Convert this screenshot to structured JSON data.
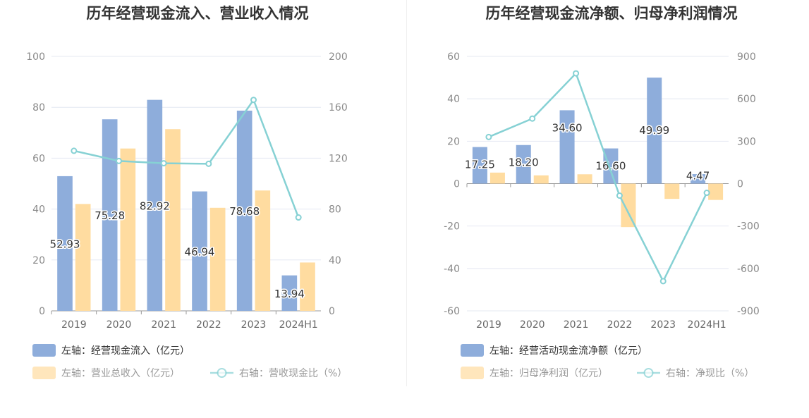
{
  "colors": {
    "bar_primary": "#8EADDB",
    "bar_secondary": "#FFDCA0",
    "line": "#86D1D4",
    "grid": "#E4E8F2",
    "axis": "#999999"
  },
  "chart_data": [
    {
      "type": "bar",
      "title": "历年经营现金流入、营业收入情况",
      "categories": [
        "2019",
        "2020",
        "2021",
        "2022",
        "2023",
        "2024H1"
      ],
      "y_left_ticks": [
        "0",
        "20",
        "40",
        "60",
        "80",
        "100"
      ],
      "y_right_ticks": [
        "0",
        "40",
        "80",
        "120",
        "160",
        "200"
      ],
      "ylim_left": [
        0,
        100
      ],
      "ylim_right": [
        0,
        200
      ],
      "series": [
        {
          "name": "左轴：经营现金流入（亿元）",
          "kind": "bar",
          "axis": "left",
          "values": [
            52.93,
            75.28,
            82.92,
            46.94,
            78.68,
            13.94
          ],
          "labels": [
            "52.93",
            "75.28",
            "82.92",
            "46.94",
            "78.68",
            "13.94"
          ]
        },
        {
          "name": "左轴：营业总收入（亿元）",
          "kind": "bar",
          "axis": "left",
          "values": [
            42.0,
            63.8,
            71.4,
            40.5,
            47.3,
            19.0
          ]
        },
        {
          "name": "右轴：营收现金比（%）",
          "kind": "line",
          "axis": "right",
          "values": [
            125.8,
            117.8,
            116.0,
            115.6,
            165.8,
            73.4
          ]
        }
      ],
      "legend_placement": "bottom-left"
    },
    {
      "type": "bar",
      "title": "历年经营现金流净额、归母净利润情况",
      "categories": [
        "2019",
        "2020",
        "2021",
        "2022",
        "2023",
        "2024H1"
      ],
      "y_left_ticks": [
        "-60",
        "-40",
        "-20",
        "0",
        "20",
        "40",
        "60"
      ],
      "y_right_ticks": [
        "-900",
        "-600",
        "-300",
        "0",
        "300",
        "600",
        "900"
      ],
      "ylim_left": [
        -60,
        60
      ],
      "ylim_right": [
        -900,
        900
      ],
      "series": [
        {
          "name": "左轴：经营活动现金流净额（亿元）",
          "kind": "bar",
          "axis": "left",
          "values": [
            17.25,
            18.2,
            34.6,
            16.6,
            49.99,
            4.47
          ],
          "labels": [
            "17.25",
            "18.20",
            "34.60",
            "16.60",
            "49.99",
            "4.47"
          ]
        },
        {
          "name": "左轴：归母净利润（亿元）",
          "kind": "bar",
          "axis": "left",
          "values": [
            5.2,
            3.9,
            4.4,
            -20.5,
            -7.2,
            -7.7
          ]
        },
        {
          "name": "右轴：净现比（%）",
          "kind": "line",
          "axis": "right",
          "values": [
            330,
            460,
            780,
            -85,
            -690,
            -65
          ]
        }
      ],
      "legend_placement": "bottom-left"
    }
  ]
}
